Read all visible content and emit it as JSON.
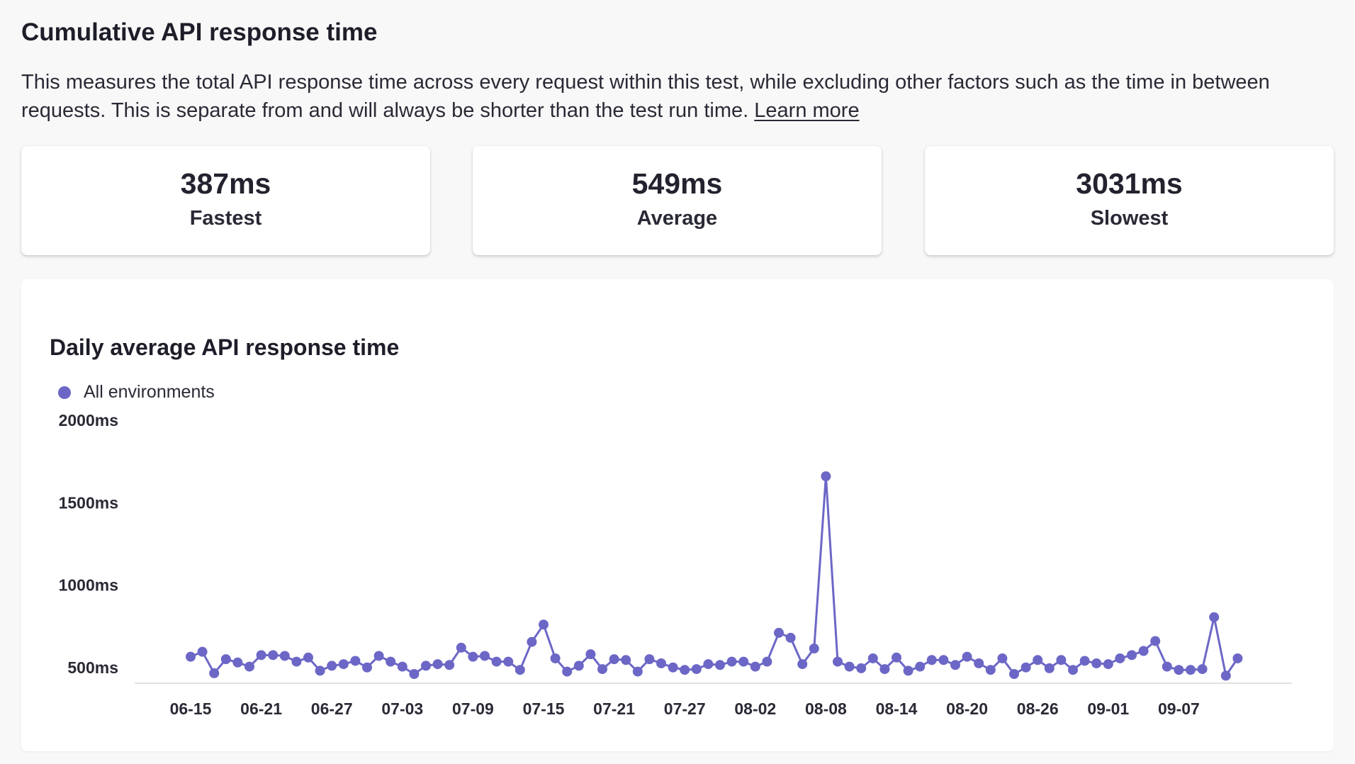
{
  "header": {
    "title": "Cumulative API response time",
    "description": "This measures the total API response time across every request within this test, while excluding other factors such as the time in between requests. This is separate from and will always be shorter than the test run time.",
    "learn_more": "Learn more"
  },
  "stats": {
    "fastest": {
      "value": "387ms",
      "label": "Fastest"
    },
    "average": {
      "value": "549ms",
      "label": "Average"
    },
    "slowest": {
      "value": "3031ms",
      "label": "Slowest"
    }
  },
  "colors": {
    "series": "#6c67c6",
    "axis": "#d9d9d9"
  },
  "chart_data": {
    "type": "line",
    "title": "Daily average API response time",
    "xlabel": "",
    "ylabel": "",
    "grid": false,
    "legend_position": "top-left",
    "ylim": [
      0,
      2000
    ],
    "y_ticks": [
      500,
      1000,
      1500,
      2000
    ],
    "y_tick_labels": [
      "500ms",
      "1000ms",
      "1500ms",
      "2000ms"
    ],
    "x_tick_labels": [
      "06-15",
      "06-21",
      "06-27",
      "07-03",
      "07-09",
      "07-15",
      "07-21",
      "07-27",
      "08-02",
      "08-08",
      "08-14",
      "08-20",
      "08-26",
      "09-01",
      "09-07"
    ],
    "x": [
      "06-15",
      "06-16",
      "06-17",
      "06-18",
      "06-19",
      "06-20",
      "06-21",
      "06-22",
      "06-23",
      "06-24",
      "06-25",
      "06-26",
      "06-27",
      "06-28",
      "06-29",
      "06-30",
      "07-01",
      "07-02",
      "07-03",
      "07-04",
      "07-05",
      "07-06",
      "07-07",
      "07-08",
      "07-09",
      "07-10",
      "07-11",
      "07-12",
      "07-13",
      "07-14",
      "07-15",
      "07-16",
      "07-17",
      "07-18",
      "07-19",
      "07-20",
      "07-21",
      "07-22",
      "07-23",
      "07-24",
      "07-25",
      "07-26",
      "07-27",
      "07-28",
      "07-29",
      "07-30",
      "07-31",
      "08-01",
      "08-02",
      "08-03",
      "08-04",
      "08-05",
      "08-06",
      "08-07",
      "08-08",
      "08-09",
      "08-10",
      "08-11",
      "08-12",
      "08-13",
      "08-14",
      "08-15",
      "08-16",
      "08-17",
      "08-18",
      "08-19",
      "08-20",
      "08-21",
      "08-22",
      "08-23",
      "08-24",
      "08-25",
      "08-26",
      "08-27",
      "08-28",
      "08-29",
      "08-30",
      "08-31",
      "09-01",
      "09-02",
      "09-03",
      "09-04",
      "09-05",
      "09-06",
      "09-07",
      "09-08",
      "09-09",
      "09-10",
      "09-11",
      "09-12"
    ],
    "series": [
      {
        "name": "All environments",
        "values": [
          565,
          595,
          465,
          550,
          530,
          505,
          575,
          575,
          570,
          535,
          560,
          480,
          510,
          520,
          540,
          500,
          570,
          535,
          505,
          460,
          510,
          520,
          515,
          620,
          565,
          570,
          535,
          535,
          485,
          655,
          760,
          555,
          475,
          510,
          580,
          490,
          550,
          545,
          475,
          550,
          525,
          500,
          485,
          490,
          520,
          515,
          535,
          535,
          505,
          535,
          710,
          680,
          520,
          615,
          1660,
          535,
          505,
          495,
          555,
          490,
          560,
          480,
          505,
          545,
          545,
          515,
          565,
          525,
          485,
          555,
          460,
          500,
          545,
          495,
          545,
          485,
          540,
          525,
          520,
          555,
          575,
          600,
          660,
          505,
          485,
          485,
          490,
          805,
          450,
          555
        ]
      }
    ]
  }
}
